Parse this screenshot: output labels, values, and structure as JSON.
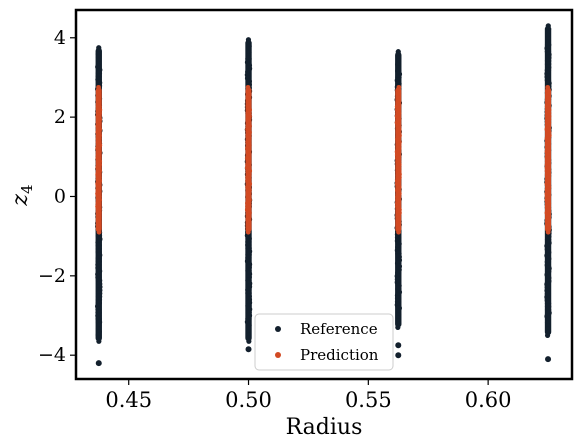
{
  "chart_data": {
    "type": "scatter",
    "xlabel": "Radius",
    "ylabel": "z",
    "ylabel_sub": "4",
    "xlim": [
      0.428,
      0.635
    ],
    "ylim": [
      -4.6,
      4.7
    ],
    "xticks": [
      0.45,
      0.5,
      0.55,
      0.6
    ],
    "xtick_labels": [
      "0.45",
      "0.50",
      "0.55",
      "0.60"
    ],
    "yticks": [
      -4,
      -2,
      0,
      2,
      4
    ],
    "ytick_labels": [
      "−4",
      "−2",
      "0",
      "2",
      "4"
    ],
    "legend": {
      "placement": "bottom-center",
      "entries": [
        {
          "label": "Reference",
          "color": "#13202d"
        },
        {
          "label": "Prediction",
          "color": "#d24a23"
        }
      ]
    },
    "series": [
      {
        "name": "Reference",
        "color": "#13202d",
        "columns": [
          {
            "x": 0.4375,
            "ymin": -3.65,
            "ymax": 3.75,
            "outliers": [
              -4.2
            ]
          },
          {
            "x": 0.5,
            "ymin": -3.65,
            "ymax": 3.95,
            "outliers": [
              -3.85
            ]
          },
          {
            "x": 0.5625,
            "ymin": -3.3,
            "ymax": 3.65,
            "outliers": [
              -3.75,
              -4.0
            ]
          },
          {
            "x": 0.625,
            "ymin": -3.5,
            "ymax": 4.3,
            "outliers": [
              -4.1
            ]
          }
        ]
      },
      {
        "name": "Prediction",
        "color": "#d24a23",
        "columns": [
          {
            "x": 0.4375,
            "ymin": -0.9,
            "ymax": 2.75
          },
          {
            "x": 0.5,
            "ymin": -0.9,
            "ymax": 2.75
          },
          {
            "x": 0.5625,
            "ymin": -0.9,
            "ymax": 2.75
          },
          {
            "x": 0.625,
            "ymin": -0.9,
            "ymax": 2.75
          }
        ]
      }
    ]
  }
}
